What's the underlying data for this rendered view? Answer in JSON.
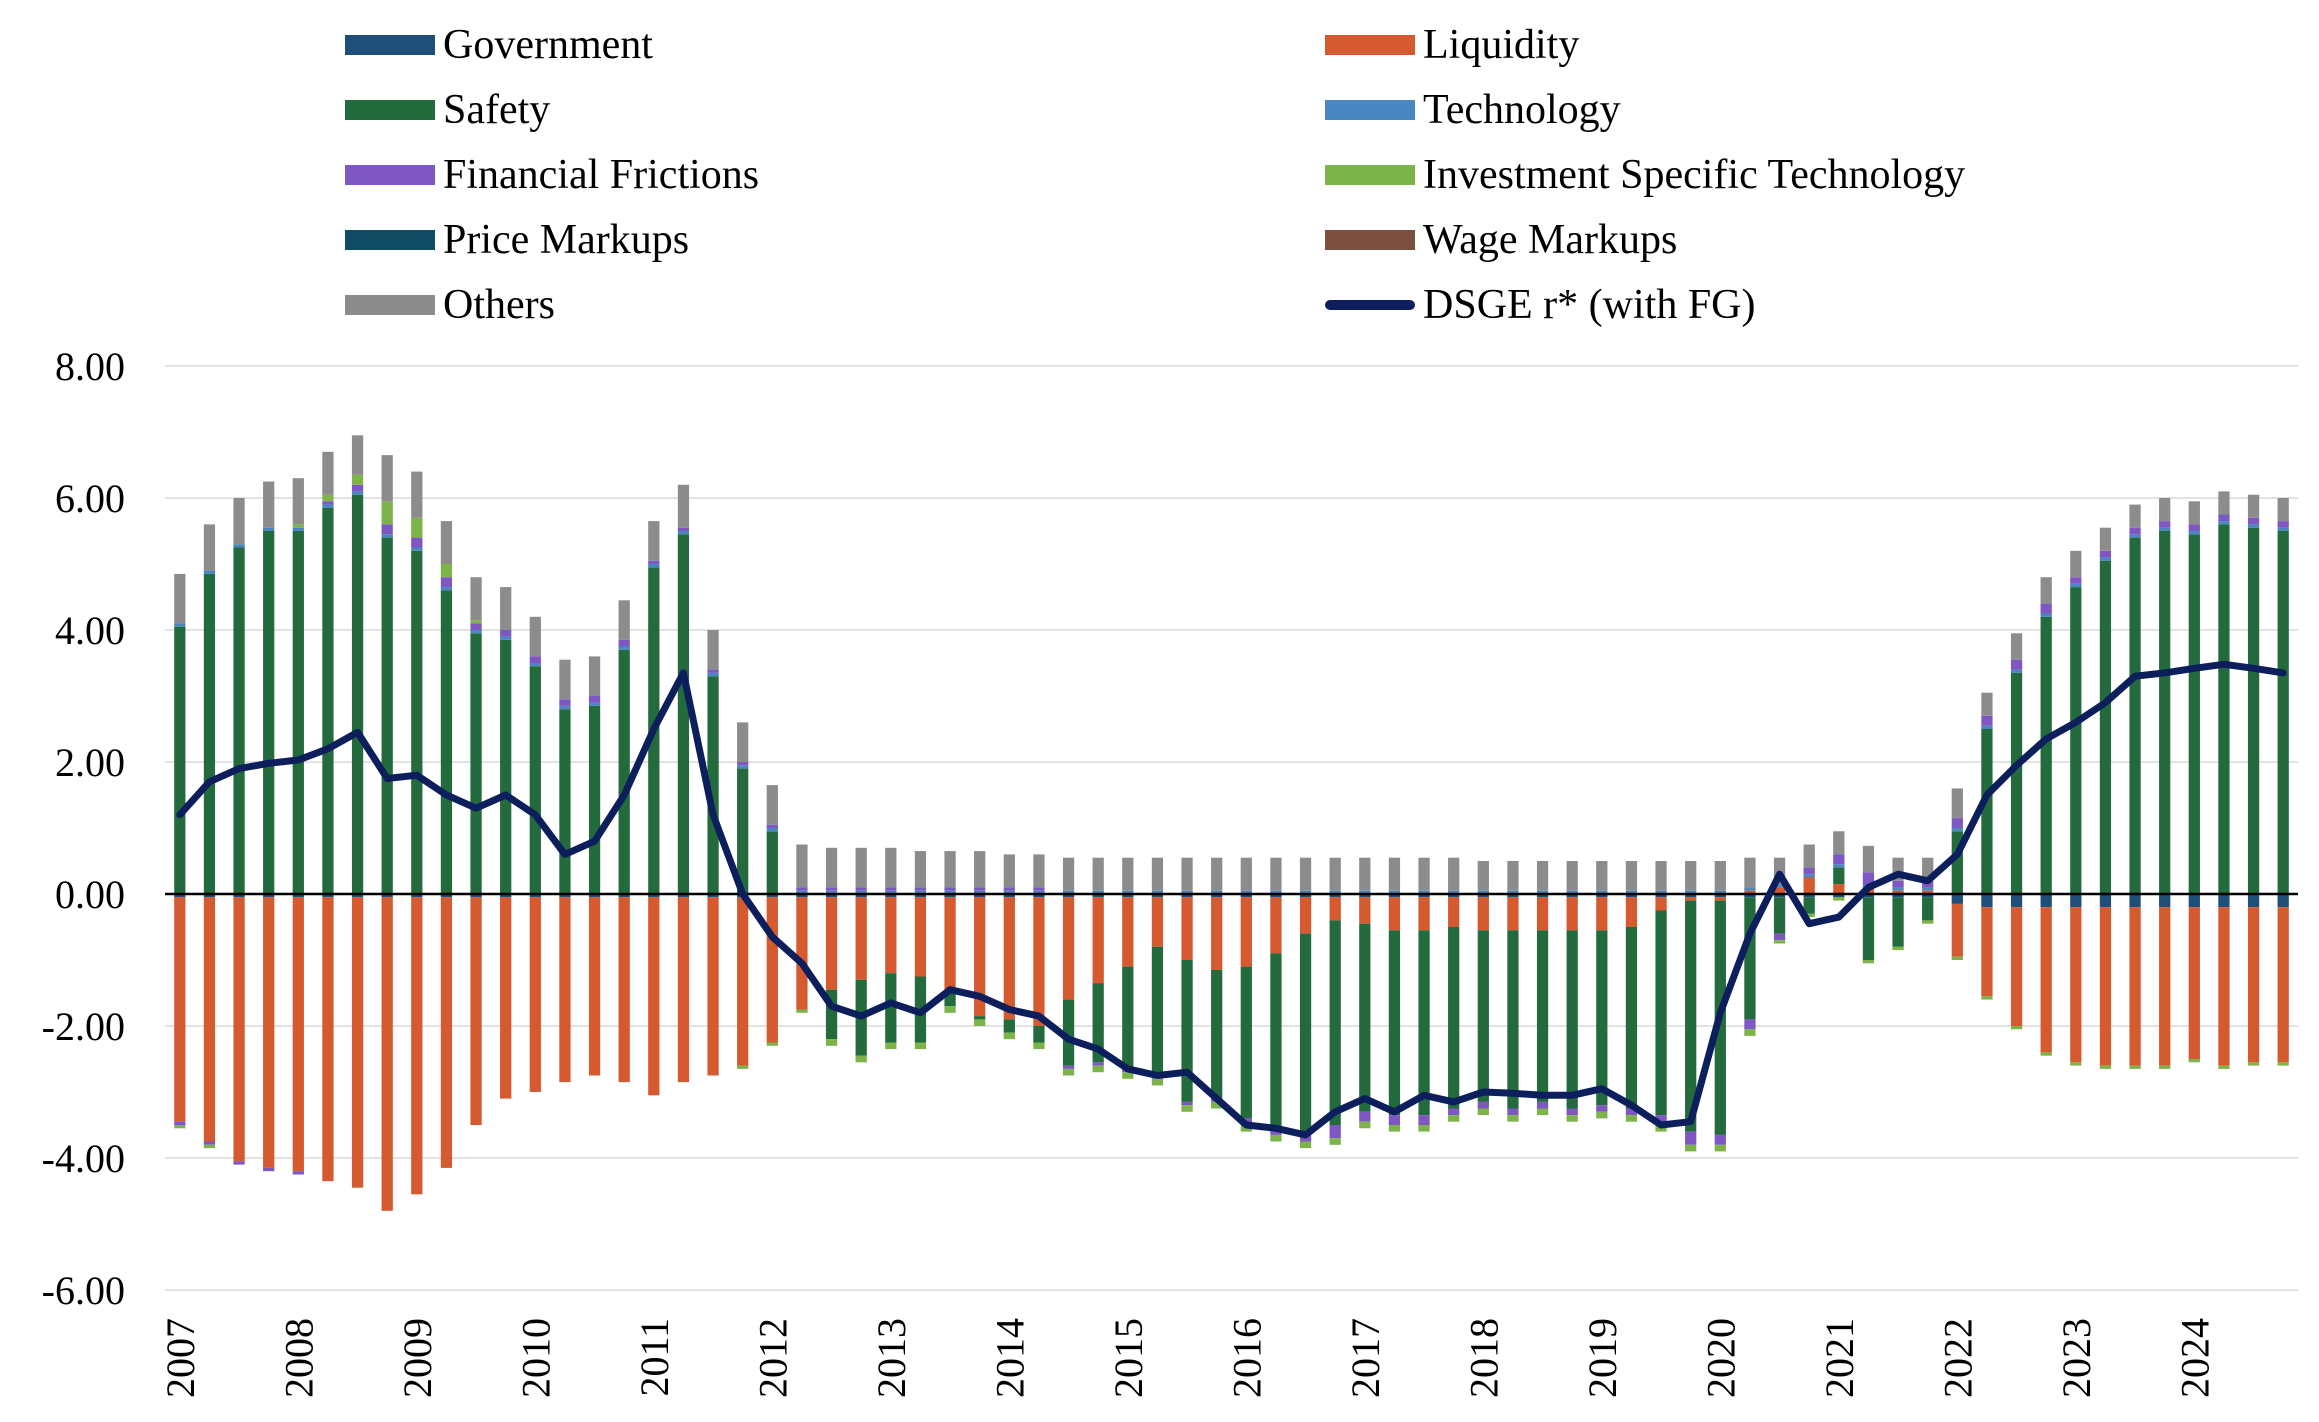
{
  "legend": [
    {
      "name": "Government",
      "color": "#1f4e79",
      "kind": "bar"
    },
    {
      "name": "Liquidity",
      "color": "#d55a2f",
      "kind": "bar"
    },
    {
      "name": "Safety",
      "color": "#236b3d",
      "kind": "bar"
    },
    {
      "name": "Technology",
      "color": "#4a86c0",
      "kind": "bar"
    },
    {
      "name": "Financial Frictions",
      "color": "#7e57c2",
      "kind": "bar"
    },
    {
      "name": "Investment Specific Technology",
      "color": "#7cb44a",
      "kind": "bar"
    },
    {
      "name": "Price Markups",
      "color": "#114a63",
      "kind": "bar"
    },
    {
      "name": "Wage Markups",
      "color": "#7b4f3e",
      "kind": "bar"
    },
    {
      "name": "Others",
      "color": "#8c8c8c",
      "kind": "bar"
    },
    {
      "name": "DSGE r* (with FG)",
      "color": "#0c1f5c",
      "kind": "line"
    }
  ],
  "chart_data": {
    "type": "bar",
    "stacked": true,
    "ylim": [
      -6,
      8
    ],
    "yticks": [
      "8.00",
      "6.00",
      "4.00",
      "2.00",
      "0.00",
      "-2.00",
      "-4.00",
      "-6.00"
    ],
    "ytick_values": [
      8,
      6,
      4,
      2,
      0,
      -2,
      -4,
      -6
    ],
    "xticks": [
      "2007",
      "2008",
      "2009",
      "2010",
      "2011",
      "2012",
      "2013",
      "2014",
      "2015",
      "2016",
      "2017",
      "2018",
      "2019",
      "2020",
      "2021",
      "2022",
      "2023",
      "2024"
    ],
    "grid": true,
    "legend_position": "top",
    "series_order": [
      "Government",
      "Liquidity",
      "Safety",
      "Technology",
      "Financial Frictions",
      "Investment Specific Technology",
      "Price Markups",
      "Wage Markups",
      "Others"
    ],
    "quarters": [
      "2007Q1",
      "2007Q2",
      "2007Q3",
      "2007Q4",
      "2008Q1",
      "2008Q2",
      "2008Q3",
      "2008Q4",
      "2009Q1",
      "2009Q2",
      "2009Q3",
      "2009Q4",
      "2010Q1",
      "2010Q2",
      "2010Q3",
      "2010Q4",
      "2011Q1",
      "2011Q2",
      "2011Q3",
      "2011Q4",
      "2012Q1",
      "2012Q2",
      "2012Q3",
      "2012Q4",
      "2013Q1",
      "2013Q2",
      "2013Q3",
      "2013Q4",
      "2014Q1",
      "2014Q2",
      "2014Q3",
      "2014Q4",
      "2015Q1",
      "2015Q2",
      "2015Q3",
      "2015Q4",
      "2016Q1",
      "2016Q2",
      "2016Q3",
      "2016Q4",
      "2017Q1",
      "2017Q2",
      "2017Q3",
      "2017Q4",
      "2018Q1",
      "2018Q2",
      "2018Q3",
      "2018Q4",
      "2019Q1",
      "2019Q2",
      "2019Q3",
      "2019Q4",
      "2020Q1",
      "2020Q2",
      "2020Q3",
      "2020Q4",
      "2021Q1",
      "2021Q2",
      "2021Q3",
      "2021Q4",
      "2022Q1",
      "2022Q2",
      "2022Q3",
      "2022Q4",
      "2023Q1",
      "2023Q2",
      "2023Q3",
      "2023Q4",
      "2024Q1",
      "2024Q2",
      "2024Q3",
      "2024Q4"
    ],
    "series": [
      {
        "name": "Government",
        "values": [
          -0.05,
          -0.05,
          -0.05,
          -0.05,
          -0.05,
          -0.05,
          -0.05,
          -0.05,
          -0.05,
          -0.05,
          -0.05,
          -0.05,
          -0.05,
          -0.05,
          -0.05,
          -0.05,
          -0.05,
          -0.05,
          -0.05,
          -0.05,
          -0.05,
          -0.05,
          -0.05,
          -0.05,
          -0.05,
          -0.05,
          -0.05,
          -0.05,
          -0.05,
          -0.05,
          -0.05,
          -0.05,
          -0.05,
          -0.05,
          -0.05,
          -0.05,
          -0.05,
          -0.05,
          -0.05,
          -0.05,
          -0.05,
          -0.05,
          -0.05,
          -0.05,
          -0.05,
          -0.05,
          -0.05,
          -0.05,
          -0.05,
          -0.05,
          -0.05,
          -0.05,
          -0.05,
          -0.05,
          -0.05,
          -0.05,
          -0.05,
          -0.05,
          -0.05,
          -0.05,
          -0.15,
          -0.2,
          -0.2,
          -0.2,
          -0.2,
          -0.2,
          -0.2,
          -0.2,
          -0.2,
          -0.2,
          -0.2,
          -0.2
        ]
      },
      {
        "name": "Liquidity",
        "values": [
          -3.4,
          -3.7,
          -4.0,
          -4.1,
          -4.15,
          -4.3,
          -4.4,
          -4.75,
          -4.5,
          -4.1,
          -3.45,
          -3.05,
          -2.95,
          -2.8,
          -2.7,
          -2.8,
          -3.0,
          -2.8,
          -2.7,
          -2.55,
          -2.2,
          -1.7,
          -1.4,
          -1.25,
          -1.15,
          -1.2,
          -1.45,
          -1.8,
          -1.85,
          -1.95,
          -1.55,
          -1.3,
          -1.05,
          -0.75,
          -0.95,
          -1.1,
          -1.05,
          -0.85,
          -0.55,
          -0.35,
          -0.4,
          -0.5,
          -0.5,
          -0.45,
          -0.5,
          -0.5,
          -0.5,
          -0.5,
          -0.5,
          -0.45,
          -0.2,
          -0.05,
          -0.05,
          0.05,
          0.1,
          0.25,
          0.15,
          0.08,
          0.05,
          0.05,
          -0.8,
          -1.35,
          -1.8,
          -2.2,
          -2.35,
          -2.4,
          -2.4,
          -2.4,
          -2.3,
          -2.4,
          -2.35,
          -2.35
        ]
      },
      {
        "name": "Safety",
        "values": [
          4.05,
          4.85,
          5.25,
          5.5,
          5.5,
          5.85,
          6.05,
          5.4,
          5.2,
          4.6,
          3.95,
          3.85,
          3.45,
          2.8,
          2.85,
          3.7,
          4.95,
          5.45,
          3.3,
          1.9,
          0.95,
          0.0,
          -0.75,
          -1.15,
          -1.05,
          -1.0,
          -0.2,
          -0.05,
          -0.2,
          -0.25,
          -1.0,
          -1.2,
          -1.55,
          -1.95,
          -2.15,
          -1.95,
          -2.3,
          -2.65,
          -3.0,
          -3.1,
          -2.85,
          -2.8,
          -2.8,
          -2.75,
          -2.6,
          -2.7,
          -2.6,
          -2.7,
          -2.65,
          -2.75,
          -3.1,
          -3.5,
          -3.55,
          -1.85,
          -0.55,
          -0.25,
          0.25,
          -0.95,
          -0.75,
          -0.35,
          0.95,
          2.5,
          3.35,
          4.2,
          4.65,
          5.05,
          5.4,
          5.5,
          5.45,
          5.6,
          5.55,
          5.5
        ]
      },
      {
        "name": "Technology",
        "values": [
          0.05,
          0.05,
          0.05,
          0.05,
          0.05,
          0.05,
          0.05,
          0.05,
          0.05,
          0.05,
          0.05,
          0.05,
          0.05,
          0.05,
          0.05,
          0.05,
          0.05,
          0.05,
          0.05,
          0.05,
          0.05,
          0.05,
          0.05,
          0.05,
          0.05,
          0.05,
          0.05,
          0.05,
          0.05,
          0.05,
          0.05,
          0.05,
          0.05,
          0.05,
          0.05,
          0.05,
          0.05,
          0.05,
          0.05,
          0.05,
          0.05,
          0.05,
          0.05,
          0.05,
          0.05,
          0.05,
          0.05,
          0.05,
          0.05,
          0.05,
          0.05,
          0.05,
          0.05,
          0.05,
          0.05,
          0.05,
          0.05,
          0.05,
          0.05,
          0.05,
          0.05,
          0.05,
          0.05,
          0.05,
          0.05,
          0.05,
          0.05,
          0.05,
          0.05,
          0.05,
          0.05,
          0.05
        ]
      },
      {
        "name": "Financial Frictions",
        "values": [
          -0.05,
          -0.05,
          -0.05,
          -0.05,
          -0.05,
          0.05,
          0.1,
          0.15,
          0.15,
          0.15,
          0.1,
          0.1,
          0.1,
          0.1,
          0.1,
          0.1,
          0.05,
          0.05,
          0.05,
          0.05,
          0.05,
          0.05,
          0.05,
          0.05,
          0.05,
          0.05,
          0.05,
          0.05,
          0.05,
          0.05,
          -0.05,
          -0.05,
          -0.05,
          -0.05,
          -0.05,
          -0.05,
          -0.1,
          -0.1,
          -0.15,
          -0.2,
          -0.15,
          -0.15,
          -0.15,
          -0.1,
          -0.1,
          -0.1,
          -0.1,
          -0.1,
          -0.1,
          -0.1,
          -0.15,
          -0.2,
          -0.15,
          -0.15,
          -0.1,
          0.1,
          0.15,
          0.2,
          0.1,
          0.1,
          0.15,
          0.15,
          0.15,
          0.15,
          0.1,
          0.1,
          0.1,
          0.1,
          0.1,
          0.1,
          0.1,
          0.1
        ]
      },
      {
        "name": "Investment Specific Technology",
        "values": [
          -0.05,
          -0.05,
          0.0,
          0.0,
          0.05,
          0.1,
          0.15,
          0.35,
          0.3,
          0.2,
          0.05,
          0.0,
          0.0,
          0.0,
          0.0,
          0.0,
          0.0,
          0.0,
          0.0,
          -0.05,
          -0.05,
          -0.05,
          -0.1,
          -0.1,
          -0.1,
          -0.1,
          -0.1,
          -0.1,
          -0.1,
          -0.1,
          -0.1,
          -0.1,
          -0.1,
          -0.1,
          -0.1,
          -0.1,
          -0.1,
          -0.1,
          -0.1,
          -0.1,
          -0.1,
          -0.1,
          -0.1,
          -0.1,
          -0.1,
          -0.1,
          -0.1,
          -0.1,
          -0.1,
          -0.1,
          -0.1,
          -0.1,
          -0.1,
          -0.1,
          -0.05,
          -0.05,
          -0.05,
          -0.05,
          -0.05,
          -0.05,
          -0.05,
          -0.05,
          -0.05,
          -0.05,
          -0.05,
          -0.05,
          -0.05,
          -0.05,
          -0.05,
          -0.05,
          -0.05,
          -0.05
        ]
      },
      {
        "name": "Price Markups",
        "values": [
          0.0,
          0.0,
          0.0,
          0.0,
          0.0,
          0.0,
          0.0,
          0.0,
          0.0,
          0.0,
          0.0,
          0.0,
          0.0,
          0.0,
          0.0,
          0.0,
          0.0,
          0.0,
          0.0,
          0.0,
          0.0,
          0.0,
          0.0,
          0.0,
          0.0,
          0.0,
          0.0,
          0.0,
          0.0,
          0.0,
          0.0,
          0.0,
          0.0,
          0.0,
          0.0,
          0.0,
          0.0,
          0.0,
          0.0,
          0.0,
          0.0,
          0.0,
          0.0,
          0.0,
          0.0,
          0.0,
          0.0,
          0.0,
          0.0,
          0.0,
          0.0,
          0.0,
          0.0,
          0.0,
          0.0,
          0.0,
          0.0,
          0.0,
          0.0,
          0.0,
          0.0,
          0.0,
          0.0,
          0.0,
          0.0,
          0.0,
          0.0,
          0.0,
          0.0,
          0.0,
          0.0,
          0.0
        ]
      },
      {
        "name": "Wage Markups",
        "values": [
          0.0,
          0.0,
          0.0,
          0.0,
          0.0,
          0.0,
          0.0,
          0.0,
          0.0,
          0.0,
          0.0,
          0.0,
          0.0,
          0.0,
          0.0,
          0.0,
          0.0,
          0.0,
          0.0,
          0.0,
          0.0,
          0.0,
          0.0,
          0.0,
          0.0,
          0.0,
          0.0,
          0.0,
          0.0,
          0.0,
          0.0,
          0.0,
          0.0,
          0.0,
          0.0,
          0.0,
          0.0,
          0.0,
          0.0,
          0.0,
          0.0,
          0.0,
          0.0,
          0.0,
          0.0,
          0.0,
          0.0,
          0.0,
          0.0,
          0.0,
          0.0,
          0.0,
          0.0,
          0.0,
          0.0,
          0.0,
          0.0,
          0.0,
          0.0,
          0.0,
          0.0,
          0.0,
          0.0,
          0.0,
          0.0,
          0.0,
          0.0,
          0.0,
          0.0,
          0.0,
          0.0,
          0.0
        ]
      },
      {
        "name": "Others",
        "values": [
          0.75,
          0.7,
          0.7,
          0.7,
          0.7,
          0.65,
          0.6,
          0.7,
          0.7,
          0.65,
          0.65,
          0.65,
          0.6,
          0.6,
          0.6,
          0.6,
          0.6,
          0.65,
          0.6,
          0.6,
          0.6,
          0.65,
          0.6,
          0.6,
          0.6,
          0.55,
          0.55,
          0.55,
          0.5,
          0.5,
          0.5,
          0.5,
          0.5,
          0.5,
          0.5,
          0.5,
          0.5,
          0.5,
          0.5,
          0.5,
          0.5,
          0.5,
          0.5,
          0.5,
          0.45,
          0.45,
          0.45,
          0.45,
          0.45,
          0.45,
          0.45,
          0.45,
          0.45,
          0.45,
          0.4,
          0.35,
          0.35,
          0.4,
          0.35,
          0.35,
          0.45,
          0.35,
          0.4,
          0.4,
          0.4,
          0.35,
          0.35,
          0.35,
          0.35,
          0.35,
          0.35,
          0.35
        ]
      },
      {
        "name": "DSGE r* (with FG)",
        "kind": "line",
        "values": [
          1.2,
          1.7,
          1.9,
          1.98,
          2.03,
          2.2,
          2.45,
          1.75,
          1.8,
          1.5,
          1.3,
          1.5,
          1.2,
          0.6,
          0.8,
          1.5,
          2.5,
          3.35,
          1.2,
          0.0,
          -0.65,
          -1.05,
          -1.7,
          -1.85,
          -1.65,
          -1.8,
          -1.45,
          -1.55,
          -1.75,
          -1.85,
          -2.2,
          -2.35,
          -2.65,
          -2.75,
          -2.7,
          -3.1,
          -3.5,
          -3.55,
          -3.65,
          -3.3,
          -3.1,
          -3.3,
          -3.05,
          -3.15,
          -3.0,
          -3.02,
          -3.05,
          -3.05,
          -2.95,
          -3.2,
          -3.5,
          -3.45,
          -1.8,
          -0.6,
          0.3,
          -0.45,
          -0.35,
          0.1,
          0.3,
          0.2,
          0.6,
          1.5,
          1.95,
          2.35,
          2.6,
          2.9,
          3.3,
          3.35,
          3.42,
          3.48,
          3.42,
          3.35
        ]
      }
    ]
  }
}
